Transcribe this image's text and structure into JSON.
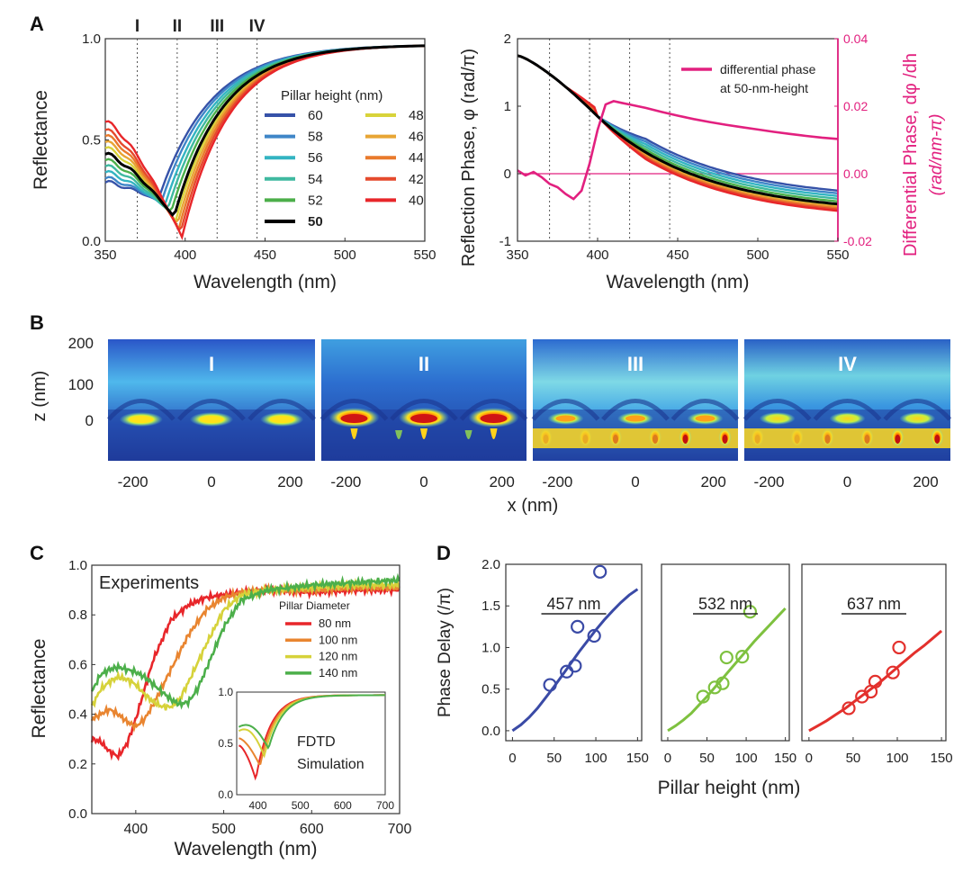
{
  "figure": {
    "panel_letters": [
      "A",
      "B",
      "C",
      "D"
    ]
  },
  "chart_data": [
    {
      "id": "A-left",
      "type": "line",
      "xlabel": "Wavelength (nm)",
      "ylabel": "Reflectance",
      "xlim": [
        350,
        550
      ],
      "ylim": [
        0,
        1
      ],
      "xticks": [
        "350",
        "400",
        "450",
        "500",
        "550"
      ],
      "yticks": [
        "0.0",
        "0.5",
        "1.0"
      ],
      "legend_title": "Pillar height (nm)",
      "markers": [
        {
          "label": "I",
          "x": 370
        },
        {
          "label": "II",
          "x": 395
        },
        {
          "label": "III",
          "x": 420
        },
        {
          "label": "IV",
          "x": 445
        }
      ],
      "series": [
        {
          "name": "60",
          "color": "#3652a8",
          "min_x": 383,
          "min_y": 0.2,
          "y350": 0.29
        },
        {
          "name": "58",
          "color": "#3f86c8",
          "min_x": 385,
          "min_y": 0.19,
          "y350": 0.31
        },
        {
          "name": "56",
          "color": "#33b4c2",
          "min_x": 387,
          "min_y": 0.17,
          "y350": 0.34
        },
        {
          "name": "54",
          "color": "#3fb9a0",
          "min_x": 389,
          "min_y": 0.155,
          "y350": 0.37
        },
        {
          "name": "52",
          "color": "#4caf4a",
          "min_x": 391,
          "min_y": 0.14,
          "y350": 0.4
        },
        {
          "name": "50",
          "color": "#000000",
          "min_x": 393,
          "min_y": 0.12,
          "y350": 0.43,
          "bold": true
        },
        {
          "name": "48",
          "color": "#d8d33a",
          "min_x": 394,
          "min_y": 0.1,
          "y350": 0.46
        },
        {
          "name": "46",
          "color": "#e8a534",
          "min_x": 395,
          "min_y": 0.08,
          "y350": 0.49
        },
        {
          "name": "44",
          "color": "#e97a2c",
          "min_x": 396,
          "min_y": 0.06,
          "y350": 0.52
        },
        {
          "name": "42",
          "color": "#e54a2d",
          "min_x": 397,
          "min_y": 0.04,
          "y350": 0.55
        },
        {
          "name": "40",
          "color": "#e8262a",
          "min_x": 398,
          "min_y": 0.02,
          "y350": 0.59
        }
      ]
    },
    {
      "id": "A-right",
      "type": "line",
      "xlabel": "Wavelength (nm)",
      "ylabel": "Reflection Phase, φ (rad/π)",
      "y2label": "Differential Phase, dφ /dh",
      "y2label_units": "(rad/nm-π)",
      "xlim": [
        350,
        550
      ],
      "ylim": [
        -1,
        2
      ],
      "y2lim": [
        -0.02,
        0.04
      ],
      "xticks": [
        "350",
        "400",
        "450",
        "500",
        "550"
      ],
      "yticks": [
        "-1",
        "0",
        "1",
        "2"
      ],
      "y2ticks": [
        "-0.02",
        "0.00",
        "0.02",
        "0.04"
      ],
      "legend": [
        "differential phase",
        "at 50-nm-height"
      ],
      "differential_phase": {
        "color": "#e2207f",
        "x": [
          350,
          355,
          360,
          365,
          370,
          375,
          380,
          385,
          390,
          395,
          400,
          405,
          410,
          415,
          420,
          430,
          440,
          450,
          460,
          470,
          480,
          490,
          500,
          510,
          520,
          530,
          540,
          550
        ],
        "y": [
          0.001,
          -0.0005,
          0.0005,
          -0.001,
          -0.003,
          -0.004,
          -0.006,
          -0.0075,
          -0.005,
          0.003,
          0.013,
          0.0205,
          0.0215,
          0.021,
          0.0205,
          0.0195,
          0.0183,
          0.0172,
          0.0162,
          0.0153,
          0.0145,
          0.0138,
          0.0131,
          0.0124,
          0.0118,
          0.0112,
          0.0107,
          0.0103
        ]
      }
    },
    {
      "id": "B",
      "type": "heatmap",
      "xlabel": "x (nm)",
      "ylabel": "z (nm)",
      "xticks": [
        "-200",
        "0",
        "200"
      ],
      "yticks": [
        "200",
        "100",
        "0"
      ],
      "maps": [
        "I",
        "II",
        "III",
        "IV"
      ]
    },
    {
      "id": "C",
      "type": "line",
      "title": "Experiments",
      "xlabel": "Wavelength (nm)",
      "ylabel": "Reflectance",
      "xlim": [
        350,
        700
      ],
      "ylim": [
        0,
        1
      ],
      "xticks": [
        "400",
        "500",
        "600",
        "700"
      ],
      "yticks": [
        "0.0",
        "0.2",
        "0.4",
        "0.6",
        "0.8",
        "1.0"
      ],
      "legend_title": "Pillar Diameter",
      "series": [
        {
          "name": "80 nm",
          "color": "#e8262a",
          "x": [
            350,
            360,
            370,
            380,
            390,
            400,
            410,
            420,
            440,
            460,
            480,
            500,
            520,
            550,
            600,
            650,
            700
          ],
          "y": [
            0.3,
            0.29,
            0.25,
            0.23,
            0.28,
            0.38,
            0.5,
            0.62,
            0.78,
            0.84,
            0.87,
            0.88,
            0.89,
            0.9,
            0.89,
            0.9,
            0.9
          ]
        },
        {
          "name": "100 nm",
          "color": "#e98530",
          "x": [
            350,
            360,
            370,
            380,
            390,
            400,
            410,
            420,
            440,
            460,
            480,
            500,
            520,
            550,
            600,
            650,
            700
          ],
          "y": [
            0.38,
            0.4,
            0.42,
            0.4,
            0.37,
            0.35,
            0.38,
            0.44,
            0.58,
            0.72,
            0.82,
            0.87,
            0.89,
            0.9,
            0.9,
            0.91,
            0.91
          ]
        },
        {
          "name": "120 nm",
          "color": "#d6d23a",
          "x": [
            350,
            360,
            370,
            380,
            390,
            400,
            410,
            420,
            430,
            440,
            450,
            460,
            480,
            500,
            520,
            550,
            600,
            650,
            700
          ],
          "y": [
            0.43,
            0.5,
            0.53,
            0.55,
            0.54,
            0.52,
            0.48,
            0.45,
            0.43,
            0.43,
            0.46,
            0.53,
            0.68,
            0.82,
            0.88,
            0.9,
            0.91,
            0.92,
            0.92
          ]
        },
        {
          "name": "140 nm",
          "color": "#4caf4a",
          "x": [
            350,
            360,
            370,
            380,
            390,
            400,
            410,
            420,
            440,
            450,
            460,
            470,
            480,
            500,
            520,
            550,
            600,
            650,
            700
          ],
          "y": [
            0.49,
            0.56,
            0.58,
            0.59,
            0.58,
            0.57,
            0.55,
            0.52,
            0.46,
            0.44,
            0.45,
            0.5,
            0.58,
            0.75,
            0.86,
            0.9,
            0.92,
            0.93,
            0.94
          ]
        }
      ],
      "inset": {
        "label": [
          "FDTD",
          "Simulation"
        ],
        "xlim": [
          350,
          700
        ],
        "ylim": [
          0,
          1
        ],
        "xticks": [
          "400",
          "500",
          "600",
          "700"
        ],
        "yticks": [
          "0.0",
          "0.5",
          "1.0"
        ]
      }
    },
    {
      "id": "D",
      "type": "scatter",
      "ylabel": "Phase Delay (/π)",
      "xlabel": "Pillar height (nm)",
      "xlim": [
        0,
        150
      ],
      "ylim": [
        0,
        2
      ],
      "xticks": [
        "0",
        "50",
        "100",
        "150"
      ],
      "yticks": [
        "0.0",
        "0.5",
        "1.0",
        "1.5",
        "2.0"
      ],
      "subplots": [
        {
          "label": "457 nm",
          "color": "#3a4aa6",
          "points": [
            [
              45,
              0.55
            ],
            [
              65,
              0.71
            ],
            [
              75,
              0.78
            ],
            [
              78,
              1.25
            ],
            [
              98,
              1.14
            ],
            [
              105,
              1.91
            ]
          ],
          "fit_x": [
            0,
            10,
            20,
            30,
            40,
            50,
            60,
            70,
            80,
            90,
            100,
            110,
            120,
            130,
            140,
            150
          ],
          "fit_y": [
            0.0,
            0.07,
            0.16,
            0.27,
            0.4,
            0.53,
            0.67,
            0.81,
            0.95,
            1.08,
            1.21,
            1.33,
            1.44,
            1.54,
            1.63,
            1.7
          ]
        },
        {
          "label": "532 nm",
          "color": "#7ec13f",
          "points": [
            [
              45,
              0.41
            ],
            [
              60,
              0.52
            ],
            [
              70,
              0.57
            ],
            [
              75,
              0.88
            ],
            [
              95,
              0.89
            ],
            [
              105,
              1.43
            ]
          ],
          "fit_x": [
            0,
            10,
            20,
            30,
            40,
            50,
            60,
            70,
            80,
            90,
            100,
            110,
            120,
            130,
            140,
            150
          ],
          "fit_y": [
            0.0,
            0.06,
            0.13,
            0.21,
            0.31,
            0.41,
            0.52,
            0.63,
            0.74,
            0.85,
            0.96,
            1.07,
            1.17,
            1.27,
            1.37,
            1.47
          ]
        },
        {
          "label": "637 nm",
          "color": "#e3302c",
          "points": [
            [
              45,
              0.27
            ],
            [
              60,
              0.41
            ],
            [
              70,
              0.47
            ],
            [
              75,
              0.59
            ],
            [
              95,
              0.7
            ],
            [
              102,
              1.0
            ]
          ],
          "fit_x": [
            0,
            10,
            20,
            30,
            40,
            50,
            60,
            70,
            80,
            90,
            100,
            110,
            120,
            130,
            140,
            150
          ],
          "fit_y": [
            0.0,
            0.06,
            0.12,
            0.19,
            0.26,
            0.34,
            0.42,
            0.5,
            0.58,
            0.67,
            0.76,
            0.85,
            0.94,
            1.02,
            1.11,
            1.2
          ]
        }
      ]
    }
  ]
}
